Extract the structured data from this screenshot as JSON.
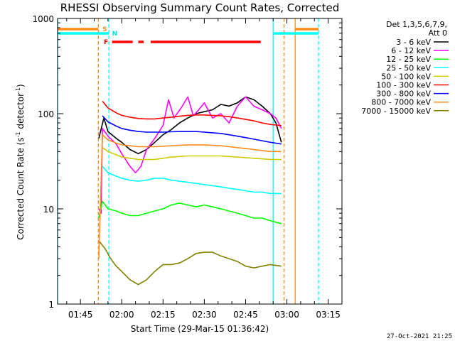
{
  "chart_data": {
    "type": "line",
    "title": "RHESSI Observing Summary Count Rates, Corrected",
    "xlabel": "Start Time (29-Mar-15 01:36:42)",
    "ylabel": "Corrected Count Rate (s",
    "ylabel_sup1": "-1",
    "ylabel_mid": " detector",
    "ylabel_sup2": "-1",
    "ylabel_end": ")",
    "yscale": "log",
    "ylim": [
      1,
      1000
    ],
    "xlim": [
      "01:36:42",
      "03:20:00"
    ],
    "x_ticks": [
      "01:45",
      "02:00",
      "02:15",
      "02:30",
      "02:45",
      "03:00",
      "03:15"
    ],
    "y_ticks": [
      "1",
      "10",
      "100",
      "1000"
    ],
    "legend": {
      "header1": "Det 1,3,5,6,7,9,",
      "header2": "Att 0",
      "placement": "right"
    },
    "footer": "27-Oct-2021 21:25",
    "flags": [
      {
        "label": "S",
        "color": "#ff8c1a"
      },
      {
        "label": "N",
        "color": "#00e6e6"
      },
      {
        "label": "F",
        "color": "#ff0000"
      }
    ],
    "series": [
      {
        "name": "3 - 6 keV",
        "color": "#000000",
        "points": [
          [
            "01:51:40",
            55
          ],
          [
            "01:53:30",
            90
          ],
          [
            "01:55:00",
            65
          ],
          [
            "01:58:00",
            55
          ],
          [
            "02:00:00",
            50
          ],
          [
            "02:03:00",
            42
          ],
          [
            "02:06:00",
            38
          ],
          [
            "02:09:00",
            42
          ],
          [
            "02:12:00",
            50
          ],
          [
            "02:15:00",
            60
          ],
          [
            "02:18:00",
            68
          ],
          [
            "02:21:00",
            80
          ],
          [
            "02:24:00",
            90
          ],
          [
            "02:27:00",
            100
          ],
          [
            "02:30:00",
            105
          ],
          [
            "02:33:00",
            110
          ],
          [
            "02:36:00",
            125
          ],
          [
            "02:39:00",
            120
          ],
          [
            "02:42:00",
            130
          ],
          [
            "02:45:00",
            150
          ],
          [
            "02:48:00",
            140
          ],
          [
            "02:51:00",
            120
          ],
          [
            "02:54:00",
            100
          ],
          [
            "02:56:00",
            80
          ],
          [
            "02:58:00",
            50
          ]
        ]
      },
      {
        "name": "6 - 12 keV",
        "color": "#ff00ff",
        "points": [
          [
            "01:51:40",
            10
          ],
          [
            "01:52:30",
            9
          ],
          [
            "01:53:00",
            70
          ],
          [
            "01:55:00",
            58
          ],
          [
            "01:58:00",
            48
          ],
          [
            "02:00:00",
            38
          ],
          [
            "02:03:00",
            28
          ],
          [
            "02:05:00",
            24
          ],
          [
            "02:07:00",
            28
          ],
          [
            "02:09:00",
            42
          ],
          [
            "02:12:00",
            55
          ],
          [
            "02:15:00",
            75
          ],
          [
            "02:17:00",
            140
          ],
          [
            "02:19:00",
            90
          ],
          [
            "02:22:00",
            120
          ],
          [
            "02:24:00",
            150
          ],
          [
            "02:26:00",
            95
          ],
          [
            "02:28:00",
            110
          ],
          [
            "02:30:00",
            130
          ],
          [
            "02:33:00",
            90
          ],
          [
            "02:36:00",
            100
          ],
          [
            "02:39:00",
            80
          ],
          [
            "02:42:00",
            120
          ],
          [
            "02:45:00",
            150
          ],
          [
            "02:48:00",
            120
          ],
          [
            "02:51:00",
            110
          ],
          [
            "02:54:00",
            100
          ],
          [
            "02:56:00",
            90
          ],
          [
            "02:58:00",
            70
          ]
        ]
      },
      {
        "name": "12 - 25 keV",
        "color": "#00ff00",
        "points": [
          [
            "01:51:40",
            8
          ],
          [
            "01:53:00",
            12
          ],
          [
            "01:55:00",
            10
          ],
          [
            "01:58:00",
            9.5
          ],
          [
            "02:00:00",
            9
          ],
          [
            "02:03:00",
            8.5
          ],
          [
            "02:06:00",
            8.5
          ],
          [
            "02:09:00",
            9
          ],
          [
            "02:12:00",
            9.5
          ],
          [
            "02:15:00",
            10
          ],
          [
            "02:18:00",
            11
          ],
          [
            "02:21:00",
            11.5
          ],
          [
            "02:24:00",
            11
          ],
          [
            "02:27:00",
            10.5
          ],
          [
            "02:30:00",
            11
          ],
          [
            "02:33:00",
            10.5
          ],
          [
            "02:36:00",
            10
          ],
          [
            "02:39:00",
            9.5
          ],
          [
            "02:42:00",
            9
          ],
          [
            "02:45:00",
            8.5
          ],
          [
            "02:48:00",
            8
          ],
          [
            "02:51:00",
            8
          ],
          [
            "02:54:00",
            7.5
          ],
          [
            "02:58:00",
            7
          ]
        ]
      },
      {
        "name": "25 - 50 keV",
        "color": "#00ffff",
        "points": [
          [
            "01:53:00",
            28
          ],
          [
            "01:55:00",
            24
          ],
          [
            "01:58:00",
            22
          ],
          [
            "02:00:00",
            21
          ],
          [
            "02:03:00",
            20
          ],
          [
            "02:06:00",
            19.5
          ],
          [
            "02:09:00",
            20
          ],
          [
            "02:12:00",
            21
          ],
          [
            "02:15:00",
            21
          ],
          [
            "02:18:00",
            20
          ],
          [
            "02:21:00",
            19.5
          ],
          [
            "02:24:00",
            19
          ],
          [
            "02:27:00",
            18.5
          ],
          [
            "02:30:00",
            18
          ],
          [
            "02:33:00",
            17.5
          ],
          [
            "02:36:00",
            17
          ],
          [
            "02:39:00",
            16.5
          ],
          [
            "02:42:00",
            16
          ],
          [
            "02:45:00",
            15.5
          ],
          [
            "02:48:00",
            15
          ],
          [
            "02:51:00",
            15
          ],
          [
            "02:54:00",
            14.5
          ],
          [
            "02:58:00",
            14.5
          ]
        ]
      },
      {
        "name": "50 - 100 keV",
        "color": "#cccc00",
        "points": [
          [
            "01:53:00",
            44
          ],
          [
            "01:55:00",
            40
          ],
          [
            "01:58:00",
            37
          ],
          [
            "02:00:00",
            35
          ],
          [
            "02:03:00",
            34
          ],
          [
            "02:06:00",
            33
          ],
          [
            "02:09:00",
            33
          ],
          [
            "02:12:00",
            33
          ],
          [
            "02:15:00",
            34
          ],
          [
            "02:18:00",
            35
          ],
          [
            "02:21:00",
            35.5
          ],
          [
            "02:24:00",
            36
          ],
          [
            "02:27:00",
            36
          ],
          [
            "02:30:00",
            36
          ],
          [
            "02:33:00",
            36
          ],
          [
            "02:36:00",
            36
          ],
          [
            "02:39:00",
            35.5
          ],
          [
            "02:42:00",
            35
          ],
          [
            "02:45:00",
            34.5
          ],
          [
            "02:48:00",
            34
          ],
          [
            "02:51:00",
            33.5
          ],
          [
            "02:54:00",
            33
          ],
          [
            "02:58:00",
            33
          ]
        ]
      },
      {
        "name": "100 - 300 keV",
        "color": "#ff0000",
        "points": [
          [
            "01:53:00",
            135
          ],
          [
            "01:55:00",
            115
          ],
          [
            "01:58:00",
            102
          ],
          [
            "02:00:00",
            96
          ],
          [
            "02:03:00",
            92
          ],
          [
            "02:06:00",
            89
          ],
          [
            "02:09:00",
            88
          ],
          [
            "02:12:00",
            88
          ],
          [
            "02:15:00",
            90
          ],
          [
            "02:18:00",
            92
          ],
          [
            "02:21:00",
            94
          ],
          [
            "02:24:00",
            96
          ],
          [
            "02:27:00",
            97
          ],
          [
            "02:30:00",
            97
          ],
          [
            "02:33:00",
            96
          ],
          [
            "02:36:00",
            95
          ],
          [
            "02:39:00",
            93
          ],
          [
            "02:42:00",
            90
          ],
          [
            "02:45:00",
            87
          ],
          [
            "02:48:00",
            84
          ],
          [
            "02:51:00",
            80
          ],
          [
            "02:54:00",
            77
          ],
          [
            "02:58:00",
            75
          ]
        ]
      },
      {
        "name": "300 - 800 keV",
        "color": "#0000ff",
        "points": [
          [
            "01:53:00",
            95
          ],
          [
            "01:55:00",
            82
          ],
          [
            "01:58:00",
            74
          ],
          [
            "02:00:00",
            70
          ],
          [
            "02:03:00",
            67
          ],
          [
            "02:06:00",
            65
          ],
          [
            "02:09:00",
            64
          ],
          [
            "02:12:00",
            64
          ],
          [
            "02:15:00",
            64
          ],
          [
            "02:18:00",
            64.5
          ],
          [
            "02:21:00",
            65
          ],
          [
            "02:24:00",
            65
          ],
          [
            "02:27:00",
            65
          ],
          [
            "02:30:00",
            64
          ],
          [
            "02:33:00",
            63
          ],
          [
            "02:36:00",
            62
          ],
          [
            "02:39:00",
            60
          ],
          [
            "02:42:00",
            58
          ],
          [
            "02:45:00",
            56
          ],
          [
            "02:48:00",
            54
          ],
          [
            "02:51:00",
            52
          ],
          [
            "02:54:00",
            50
          ],
          [
            "02:58:00",
            48
          ]
        ]
      },
      {
        "name": "800 - 7000 keV",
        "color": "#ff8c1a",
        "points": [
          [
            "01:51:40",
            3
          ],
          [
            "01:53:00",
            60
          ],
          [
            "01:55:00",
            53
          ],
          [
            "01:58:00",
            49
          ],
          [
            "02:00:00",
            47
          ],
          [
            "02:03:00",
            46
          ],
          [
            "02:06:00",
            45
          ],
          [
            "02:09:00",
            45
          ],
          [
            "02:12:00",
            45
          ],
          [
            "02:15:00",
            45.5
          ],
          [
            "02:18:00",
            46
          ],
          [
            "02:21:00",
            46.5
          ],
          [
            "02:24:00",
            47
          ],
          [
            "02:27:00",
            47
          ],
          [
            "02:30:00",
            47
          ],
          [
            "02:33:00",
            46.5
          ],
          [
            "02:36:00",
            46
          ],
          [
            "02:39:00",
            45
          ],
          [
            "02:42:00",
            44
          ],
          [
            "02:45:00",
            43
          ],
          [
            "02:48:00",
            42
          ],
          [
            "02:51:00",
            41
          ],
          [
            "02:54:00",
            40
          ],
          [
            "02:58:00",
            40
          ]
        ]
      },
      {
        "name": "7000 - 15000 keV",
        "color": "#808000",
        "points": [
          [
            "01:52:00",
            4.5
          ],
          [
            "01:54:00",
            3.8
          ],
          [
            "01:56:00",
            3
          ],
          [
            "01:58:00",
            2.5
          ],
          [
            "02:00:00",
            2.2
          ],
          [
            "02:03:00",
            1.8
          ],
          [
            "02:06:00",
            1.6
          ],
          [
            "02:09:00",
            1.8
          ],
          [
            "02:12:00",
            2.2
          ],
          [
            "02:15:00",
            2.6
          ],
          [
            "02:18:00",
            2.6
          ],
          [
            "02:21:00",
            2.7
          ],
          [
            "02:24:00",
            3
          ],
          [
            "02:27:00",
            3.4
          ],
          [
            "02:30:00",
            3.5
          ],
          [
            "02:33:00",
            3.5
          ],
          [
            "02:36:00",
            3.2
          ],
          [
            "02:39:00",
            3
          ],
          [
            "02:42:00",
            2.8
          ],
          [
            "02:45:00",
            2.5
          ],
          [
            "02:48:00",
            2.4
          ],
          [
            "02:51:00",
            2.5
          ],
          [
            "02:54:00",
            2.6
          ],
          [
            "02:58:00",
            2.5
          ]
        ]
      }
    ],
    "vlines": [
      {
        "time": "01:36:42",
        "color": "#00ffff",
        "dash": false
      },
      {
        "time": "01:51:30",
        "color": "#ff8c1a",
        "dash": true
      },
      {
        "time": "01:55:20",
        "color": "#00ffff",
        "dash": true
      },
      {
        "time": "02:55:00",
        "color": "#00ffff",
        "dash": false
      },
      {
        "time": "02:59:00",
        "color": "#ff8c1a",
        "dash": true
      },
      {
        "time": "03:03:00",
        "color": "#ff8c1a",
        "dash": false
      },
      {
        "time": "03:11:30",
        "color": "#00ffff",
        "dash": true
      }
    ],
    "flag_bars": [
      {
        "flag": "S",
        "color": "#ff8c1a",
        "segments": [
          [
            "01:36:42",
            "01:51:30"
          ],
          [
            "03:03:00",
            "03:11:30"
          ]
        ]
      },
      {
        "flag": "N",
        "color": "#00ffff",
        "segments": [
          [
            "01:36:42",
            "01:55:20"
          ],
          [
            "02:55:00",
            "03:11:30"
          ]
        ]
      },
      {
        "flag": "F",
        "color": "#ff0000",
        "segments": [
          [
            "01:56:30",
            "02:04:00"
          ],
          [
            "02:06:00",
            "02:08:00"
          ],
          [
            "02:10:30",
            "02:50:30"
          ]
        ]
      }
    ]
  }
}
